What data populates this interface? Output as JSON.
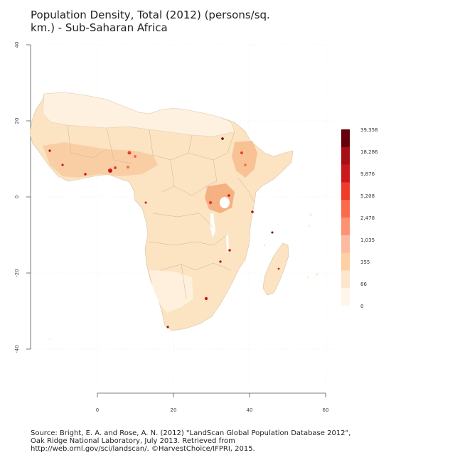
{
  "title_line1": "Population Density, Total (2012) (persons/sq.",
  "title_line2": "km.) - Sub-Saharan Africa",
  "axes": {
    "y_ticks": [
      "40",
      "20",
      "0",
      "-20",
      "-40"
    ],
    "x_ticks": [
      "0",
      "20",
      "40",
      "60"
    ]
  },
  "legend": {
    "labels": [
      "39,358",
      "18,286",
      "9,876",
      "5,208",
      "2,478",
      "1,035",
      "355",
      "86",
      "0"
    ],
    "colors": [
      "#67000d",
      "#a50f15",
      "#cb181d",
      "#ef3b2c",
      "#fb6a4a",
      "#fc9272",
      "#fcbba1",
      "#fdd0a2",
      "#fee6ce",
      "#fff5eb"
    ]
  },
  "source_line1": "Source: Bright, E. A. and Rose, A. N. (2012) \"LandScan Global Population Database 2012\",",
  "source_line2": "Oak Ridge National Laboratory, July 2013. Retrieved from",
  "source_line3": "http://web.ornl.gov/sci/landscan/. ©HarvestChoice/IFPRI, 2015."
}
